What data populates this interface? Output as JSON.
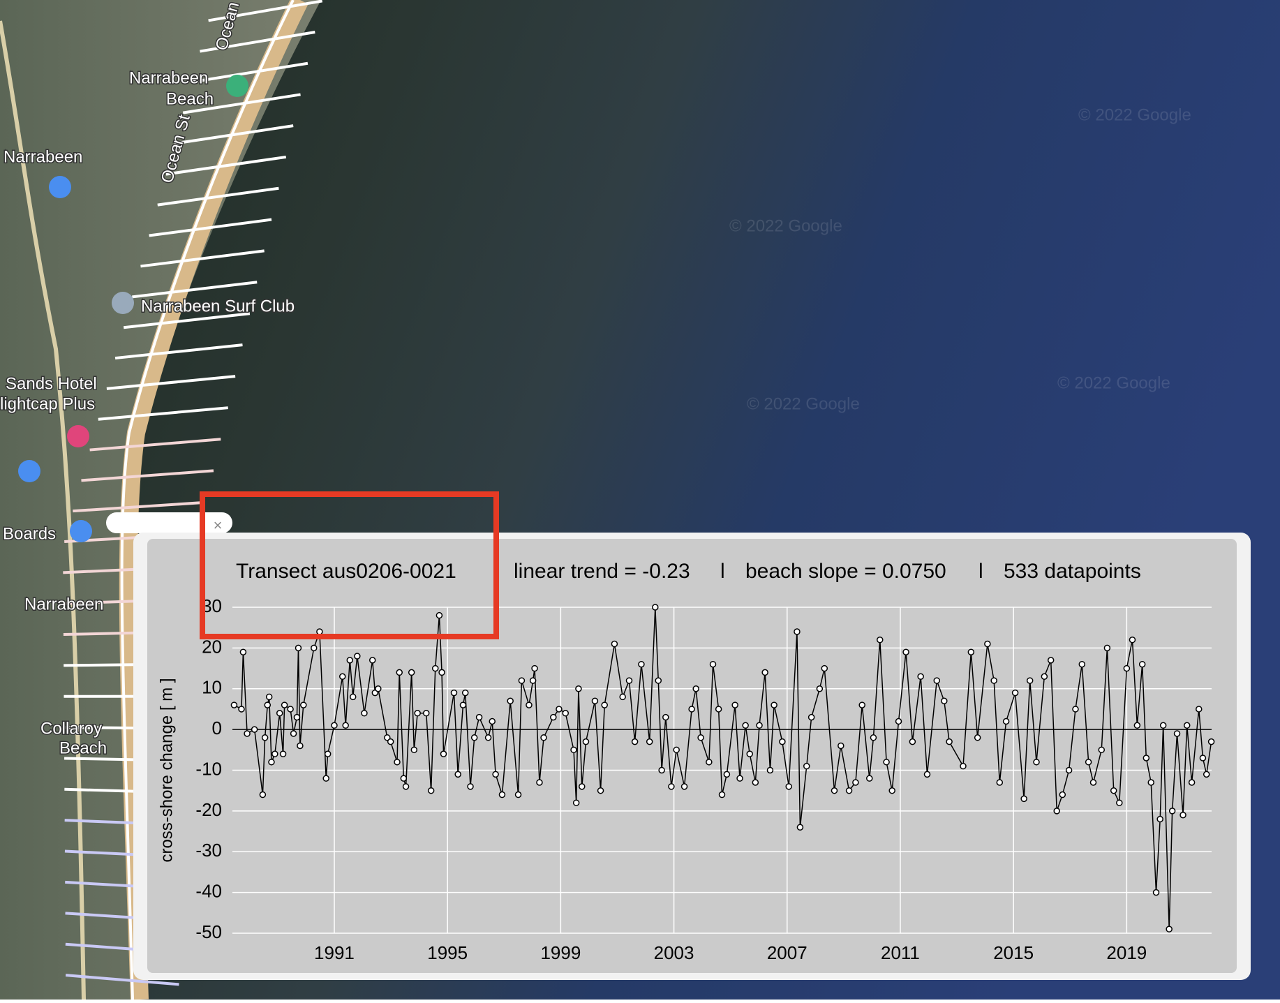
{
  "map": {
    "labels": [
      "Narrabeen",
      "Beach",
      "Narrabeen",
      "Narrabeen Surf Club",
      "Sands Hotel",
      "lightcap Plus",
      "Boards",
      "Narrabeen",
      "Collaroy",
      "Beach",
      "Ocean St",
      "Ocean St"
    ],
    "watermarks": [
      "© 2022 Google",
      "© 2022 Google",
      "© 2022 Google",
      "© 2022 Google"
    ]
  },
  "popup": {
    "close": "×"
  },
  "chart_data": {
    "type": "line",
    "title": "Transect aus0206-0021",
    "annotations": [
      "linear trend = -0.23",
      "l",
      "beach slope = 0.0750",
      "l",
      "533 datapoints"
    ],
    "y_label": "cross-shore change  [ m ]",
    "x": [
      1987.46,
      1987.72,
      1987.78,
      1987.92,
      1988.18,
      1988.47,
      1988.55,
      1988.64,
      1988.7,
      1988.78,
      1988.9,
      1989.07,
      1989.19,
      1989.24,
      1989.45,
      1989.56,
      1989.68,
      1989.73,
      1989.79,
      1989.91,
      1990.28,
      1990.48,
      1990.71,
      1990.77,
      1991.0,
      1991.29,
      1991.4,
      1991.55,
      1991.66,
      1991.81,
      1992.06,
      1992.35,
      1992.44,
      1992.55,
      1992.87,
      1992.99,
      1993.22,
      1993.3,
      1993.45,
      1993.53,
      1993.73,
      1993.82,
      1993.94,
      1994.25,
      1994.42,
      1994.57,
      1994.71,
      1994.8,
      1994.86,
      1995.23,
      1995.37,
      1995.55,
      1995.63,
      1995.81,
      1995.95,
      1996.12,
      1996.44,
      1996.58,
      1996.7,
      1996.93,
      1997.22,
      1997.5,
      1997.62,
      1997.88,
      1998.02,
      1998.08,
      1998.25,
      1998.4,
      1998.74,
      1998.94,
      1999.17,
      1999.46,
      1999.55,
      1999.63,
      1999.75,
      1999.89,
      2000.21,
      2000.41,
      2000.55,
      2000.9,
      2001.19,
      2001.42,
      2001.62,
      2001.85,
      2002.14,
      2002.34,
      2002.45,
      2002.57,
      2002.71,
      2002.91,
      2003.09,
      2003.37,
      2003.63,
      2003.78,
      2003.95,
      2004.24,
      2004.38,
      2004.58,
      2004.7,
      2004.87,
      2005.16,
      2005.33,
      2005.53,
      2005.68,
      2005.88,
      2006.02,
      2006.22,
      2006.4,
      2006.54,
      2006.83,
      2007.06,
      2007.35,
      2007.46,
      2007.69,
      2007.86,
      2008.15,
      2008.32,
      2008.67,
      2008.9,
      2009.19,
      2009.42,
      2009.65,
      2009.91,
      2010.05,
      2010.28,
      2010.51,
      2010.71,
      2010.94,
      2011.2,
      2011.43,
      2011.72,
      2011.95,
      2012.29,
      2012.55,
      2012.73,
      2013.22,
      2013.5,
      2013.73,
      2014.08,
      2014.31,
      2014.51,
      2014.74,
      2015.06,
      2015.37,
      2015.58,
      2015.81,
      2016.09,
      2016.32,
      2016.53,
      2016.73,
      2016.96,
      2017.19,
      2017.42,
      2017.65,
      2017.82,
      2018.11,
      2018.31,
      2018.54,
      2018.74,
      2019.0,
      2019.2,
      2019.37,
      2019.55,
      2019.69,
      2019.86,
      2020.04,
      2020.18,
      2020.29,
      2020.5,
      2020.61,
      2020.78,
      2020.99,
      2021.13,
      2021.3,
      2021.55,
      2021.69,
      2021.82,
      2021.99
    ],
    "series": [
      {
        "color": "#000000",
        "values": [
          6,
          5,
          19,
          -1,
          0,
          -16,
          -2,
          6,
          8,
          -8,
          -6,
          4,
          -6,
          6,
          5,
          -1,
          3,
          20,
          -4,
          6,
          20,
          24,
          -12,
          -6,
          1,
          13,
          1,
          17,
          8,
          18,
          4,
          17,
          9,
          10,
          -2,
          -3,
          -8,
          14,
          -12,
          -14,
          14,
          -5,
          4,
          4,
          -15,
          15,
          28,
          14,
          -6,
          9,
          -11,
          6,
          9,
          -14,
          -2,
          3,
          -2,
          2,
          -11,
          -16,
          7,
          -16,
          12,
          6,
          12,
          15,
          -13,
          -2,
          3,
          5,
          4,
          -5,
          -18,
          10,
          -14,
          -3,
          7,
          -15,
          6,
          21,
          8,
          12,
          -3,
          16,
          -3,
          30,
          12,
          -10,
          3,
          -14,
          -5,
          -14,
          5,
          10,
          -2,
          -8,
          16,
          5,
          -16,
          -11,
          6,
          -12,
          1,
          -6,
          -13,
          1,
          14,
          -10,
          6,
          -3,
          -14,
          24,
          -24,
          -9,
          3,
          10,
          15,
          -15,
          -4,
          -15,
          -13,
          6,
          -12,
          -2,
          22,
          -8,
          -15,
          2,
          19,
          -3,
          13,
          -11,
          12,
          7,
          -3,
          -9,
          19,
          -2,
          21,
          12,
          -13,
          2,
          9,
          -17,
          12,
          -8,
          13,
          17,
          -20,
          -16,
          -10,
          5,
          16,
          -8,
          -13,
          -5,
          20,
          -15,
          -18,
          15,
          22,
          1,
          16,
          -7,
          -13,
          -40,
          -22,
          1,
          -49,
          -20,
          -1,
          -21,
          1,
          -13,
          5,
          -7,
          -11,
          -3
        ]
      }
    ],
    "xlim": [
      1987.4,
      2022.0
    ],
    "xticks": [
      1991,
      1995,
      1999,
      2003,
      2007,
      2011,
      2015,
      2019
    ],
    "ylim": [
      -50,
      30
    ],
    "yticks": [
      -50,
      -40,
      -30,
      -20,
      -10,
      0,
      10,
      20,
      30
    ],
    "grid": true
  }
}
